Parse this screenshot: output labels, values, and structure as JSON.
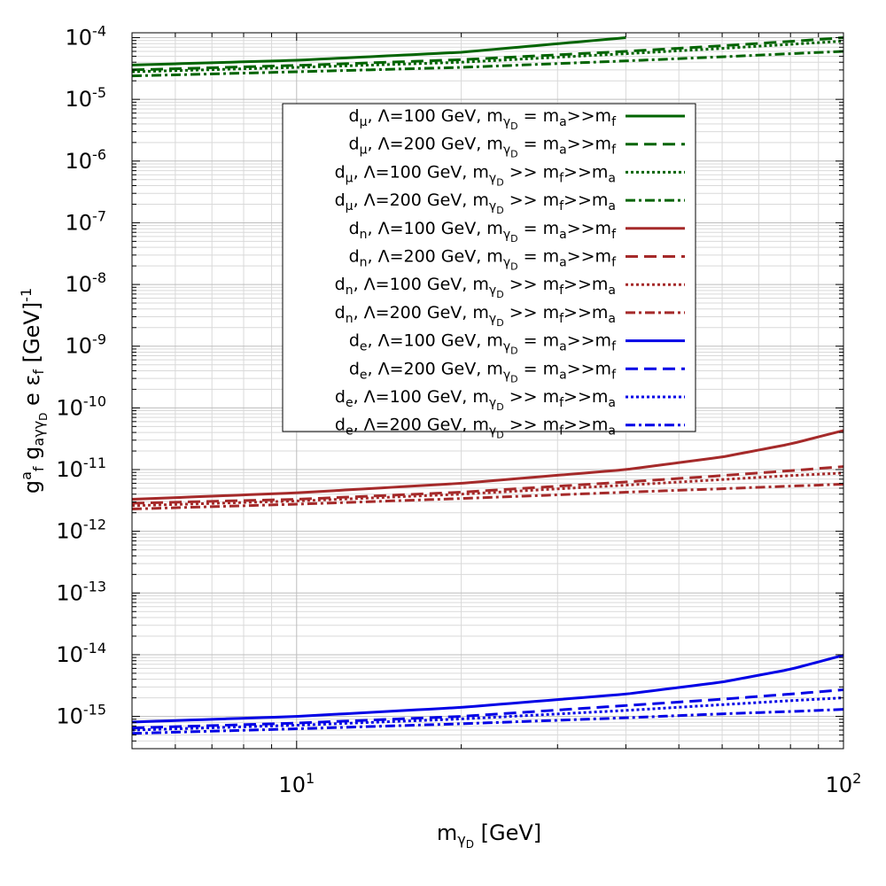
{
  "chart_data": {
    "type": "line",
    "title": "",
    "xscale": "log",
    "yscale": "log",
    "xlim": [
      5,
      100
    ],
    "ylim": [
      3e-16,
      0.00012
    ],
    "grid": true,
    "legend_position": "center-top",
    "xlabel": {
      "base": "m",
      "sub": "γ",
      "subsub": "D",
      "unit": " [GeV]"
    },
    "ylabel": {
      "parts": [
        {
          "t": "g",
          "k": "n"
        },
        {
          "t": "a",
          "k": "sup"
        },
        {
          "t": "f",
          "k": "sub"
        },
        {
          "t": " g",
          "k": "n"
        },
        {
          "t": "aγγ",
          "k": "sub"
        },
        {
          "t": "D",
          "k": "subsub"
        },
        {
          "t": " e ε",
          "k": "n"
        },
        {
          "t": "f",
          "k": "sub"
        },
        {
          "t": " [GeV]",
          "k": "n"
        },
        {
          "t": "-1",
          "k": "sup"
        }
      ]
    },
    "x_major_ticks": [
      {
        "v": 10,
        "base": "10",
        "exp": "1"
      },
      {
        "v": 100,
        "base": "10",
        "exp": "2"
      }
    ],
    "y_major_ticks": [
      {
        "v": 0.0001,
        "base": "10",
        "exp": "-4"
      },
      {
        "v": 1e-05,
        "base": "10",
        "exp": "-5"
      },
      {
        "v": 1e-06,
        "base": "10",
        "exp": "-6"
      },
      {
        "v": 1e-07,
        "base": "10",
        "exp": "-7"
      },
      {
        "v": 1e-08,
        "base": "10",
        "exp": "-8"
      },
      {
        "v": 1e-09,
        "base": "10",
        "exp": "-9"
      },
      {
        "v": 1e-10,
        "base": "10",
        "exp": "-10"
      },
      {
        "v": 1e-11,
        "base": "10",
        "exp": "-11"
      },
      {
        "v": 1e-12,
        "base": "10",
        "exp": "-12"
      },
      {
        "v": 1e-13,
        "base": "10",
        "exp": "-13"
      },
      {
        "v": 1e-14,
        "base": "10",
        "exp": "-14"
      },
      {
        "v": 1e-15,
        "base": "10",
        "exp": "-15"
      }
    ],
    "series": [
      {
        "name": "d_μ, Λ=100 GeV, m_γD = m_a>>m_f",
        "color": "#006400",
        "dash": "solid",
        "x": [
          5,
          10,
          20,
          40
        ],
        "y": [
          3.6e-05,
          4.3e-05,
          5.8e-05,
          0.0001
        ]
      },
      {
        "name": "d_μ, Λ=200 GeV, m_γD = m_a>>m_f",
        "color": "#006400",
        "dash": "dashed",
        "x": [
          5,
          10,
          20,
          40,
          60,
          80,
          100
        ],
        "y": [
          3e-05,
          3.55e-05,
          4.4e-05,
          6e-05,
          7.4e-05,
          8.7e-05,
          0.0001
        ]
      },
      {
        "name": "d_μ, Λ=100 GeV, m_γD >> m_f>>m_a",
        "color": "#006400",
        "dash": "dotted",
        "x": [
          5,
          10,
          20,
          40,
          60,
          80,
          100
        ],
        "y": [
          2.8e-05,
          3.3e-05,
          4e-05,
          5.5e-05,
          6.7e-05,
          7.8e-05,
          8.8e-05
        ]
      },
      {
        "name": "d_μ, Λ=200 GeV, m_γD >> m_f>>m_a",
        "color": "#006400",
        "dash": "dashdot",
        "x": [
          5,
          10,
          20,
          40,
          60,
          80,
          100
        ],
        "y": [
          2.4e-05,
          2.8e-05,
          3.3e-05,
          4.2e-05,
          4.9e-05,
          5.5e-05,
          6e-05
        ]
      },
      {
        "name": "d_n, Λ=100 GeV, m_γD = m_a>>m_f",
        "color": "#a52a2a",
        "dash": "solid",
        "x": [
          5,
          10,
          20,
          40,
          60,
          80,
          100
        ],
        "y": [
          3.3e-12,
          4.2e-12,
          6e-12,
          1e-11,
          1.6e-11,
          2.6e-11,
          4.3e-11
        ]
      },
      {
        "name": "d_n, Λ=200 GeV, m_γD = m_a>>m_f",
        "color": "#a52a2a",
        "dash": "dashed",
        "x": [
          5,
          10,
          20,
          40,
          60,
          80,
          100
        ],
        "y": [
          2.85e-12,
          3.3e-12,
          4.3e-12,
          6.3e-12,
          8e-12,
          9.6e-12,
          1.12e-11
        ]
      },
      {
        "name": "d_n, Λ=100 GeV, m_γD >> m_f>>m_a",
        "color": "#a52a2a",
        "dash": "dotted",
        "x": [
          5,
          10,
          20,
          40,
          60,
          80,
          100
        ],
        "y": [
          2.6e-12,
          3.1e-12,
          4e-12,
          5.6e-12,
          6.9e-12,
          8e-12,
          8.8e-12
        ]
      },
      {
        "name": "d_n, Λ=200 GeV, m_γD >> m_f>>m_a",
        "color": "#a52a2a",
        "dash": "dashdot",
        "x": [
          5,
          10,
          20,
          40,
          60,
          80,
          100
        ],
        "y": [
          2.3e-12,
          2.75e-12,
          3.4e-12,
          4.3e-12,
          4.9e-12,
          5.4e-12,
          5.8e-12
        ]
      },
      {
        "name": "d_e, Λ=100 GeV, m_γD = m_a>>m_f",
        "color": "#0000e6",
        "dash": "solid",
        "x": [
          5,
          10,
          20,
          40,
          60,
          80,
          100
        ],
        "y": [
          8.1e-16,
          1e-15,
          1.4e-15,
          2.3e-15,
          3.6e-15,
          5.8e-15,
          9.8e-15
        ]
      },
      {
        "name": "d_e, Λ=200 GeV, m_γD = m_a>>m_f",
        "color": "#0000e6",
        "dash": "dashed",
        "x": [
          5,
          10,
          20,
          40,
          60,
          80,
          100
        ],
        "y": [
          6.5e-16,
          7.8e-16,
          1e-15,
          1.5e-15,
          1.9e-15,
          2.3e-15,
          2.7e-15
        ]
      },
      {
        "name": "d_e, Λ=100 GeV, m_γD >> m_f>>m_a",
        "color": "#0000e6",
        "dash": "dotted",
        "x": [
          5,
          10,
          20,
          40,
          60,
          80,
          100
        ],
        "y": [
          6e-16,
          7.2e-16,
          9.1e-16,
          1.25e-15,
          1.55e-15,
          1.8e-15,
          2e-15
        ]
      },
      {
        "name": "d_e, Λ=200 GeV, m_γD >> m_f>>m_a",
        "color": "#0000e6",
        "dash": "dashdot",
        "x": [
          5,
          10,
          20,
          40,
          60,
          80,
          100
        ],
        "y": [
          5.3e-16,
          6.3e-16,
          7.6e-16,
          9.5e-16,
          1.1e-15,
          1.2e-15,
          1.3e-15
        ]
      }
    ],
    "legend": [
      {
        "d": "d",
        "dsub": "μ",
        "lambda": ", Λ=100 GeV,  ",
        "cond": "eq"
      },
      {
        "d": "d",
        "dsub": "μ",
        "lambda": ", Λ=200 GeV,  ",
        "cond": "eq"
      },
      {
        "d": "d",
        "dsub": "μ",
        "lambda": ", Λ=100 GeV,  ",
        "cond": "gg"
      },
      {
        "d": "d",
        "dsub": "μ",
        "lambda": ", Λ=200 GeV,  ",
        "cond": "gg"
      },
      {
        "d": "d",
        "dsub": "n",
        "lambda": ", Λ=100 GeV,  ",
        "cond": "eq"
      },
      {
        "d": "d",
        "dsub": "n",
        "lambda": ", Λ=200 GeV,  ",
        "cond": "eq"
      },
      {
        "d": "d",
        "dsub": "n",
        "lambda": ", Λ=100 GeV,  ",
        "cond": "gg"
      },
      {
        "d": "d",
        "dsub": "n",
        "lambda": ", Λ=200 GeV,  ",
        "cond": "gg"
      },
      {
        "d": "d",
        "dsub": "e",
        "lambda": ", Λ=100 GeV,  ",
        "cond": "eq"
      },
      {
        "d": "d",
        "dsub": "e",
        "lambda": ", Λ=200 GeV,  ",
        "cond": "eq"
      },
      {
        "d": "d",
        "dsub": "e",
        "lambda": ", Λ=100 GeV,  ",
        "cond": "gg"
      },
      {
        "d": "d",
        "dsub": "e",
        "lambda": ", Λ=200 GeV,  ",
        "cond": "gg"
      }
    ],
    "legend_conditions": {
      "eq": [
        {
          "t": "m",
          "k": "n"
        },
        {
          "t": "γ",
          "k": "sub"
        },
        {
          "t": "D",
          "k": "subsub"
        },
        {
          "t": " = m",
          "k": "n"
        },
        {
          "t": "a",
          "k": "sub"
        },
        {
          "t": ">>m",
          "k": "n"
        },
        {
          "t": "f",
          "k": "sub"
        }
      ],
      "gg": [
        {
          "t": "m",
          "k": "n"
        },
        {
          "t": "γ",
          "k": "sub"
        },
        {
          "t": "D",
          "k": "subsub"
        },
        {
          "t": " >> m",
          "k": "n"
        },
        {
          "t": "f",
          "k": "sub"
        },
        {
          "t": ">>m",
          "k": "n"
        },
        {
          "t": "a",
          "k": "sub"
        }
      ]
    }
  }
}
